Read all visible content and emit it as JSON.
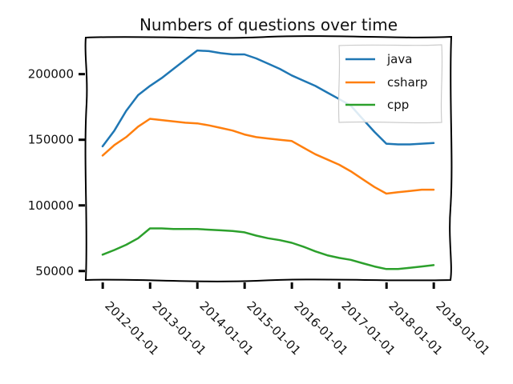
{
  "chart_data": {
    "type": "line",
    "title": "Numbers of questions over time",
    "xlabel": "",
    "ylabel": "",
    "x": [
      "2011-12-31",
      "2012-03-31",
      "2012-06-30",
      "2012-09-30",
      "2012-12-31",
      "2013-03-31",
      "2013-06-30",
      "2013-09-30",
      "2013-12-31",
      "2014-03-31",
      "2014-06-30",
      "2014-09-30",
      "2014-12-31",
      "2015-03-31",
      "2015-06-30",
      "2015-09-30",
      "2015-12-31",
      "2016-03-31",
      "2016-06-30",
      "2016-09-30",
      "2016-12-31",
      "2017-03-31",
      "2017-06-30",
      "2017-09-30",
      "2017-12-31",
      "2018-03-31",
      "2018-06-30",
      "2018-09-30",
      "2018-12-31"
    ],
    "series": [
      {
        "name": "java",
        "color": "#1f77b4",
        "values": [
          145000,
          157000,
          172000,
          184000,
          191000,
          197000,
          204000,
          211000,
          218000,
          217500,
          216000,
          215000,
          215000,
          212000,
          208000,
          204000,
          199000,
          195000,
          191000,
          186000,
          181000,
          176000,
          166000,
          156000,
          147000,
          146500,
          146500,
          147000,
          147500
        ]
      },
      {
        "name": "csharp",
        "color": "#ff7f0e",
        "values": [
          138000,
          146000,
          152000,
          160000,
          166000,
          165000,
          164000,
          163000,
          162500,
          161000,
          159000,
          157000,
          154000,
          152000,
          151000,
          150000,
          149000,
          144000,
          139000,
          135000,
          131000,
          126000,
          120000,
          114000,
          109000,
          110000,
          111000,
          112000,
          112000
        ]
      },
      {
        "name": "cpp",
        "color": "#2ca02c",
        "values": [
          62500,
          66000,
          70000,
          75000,
          82500,
          82500,
          82000,
          82000,
          82000,
          81500,
          81000,
          80500,
          79500,
          77000,
          75000,
          73500,
          71500,
          68500,
          65000,
          62000,
          60000,
          58500,
          56000,
          53500,
          51500,
          51500,
          52500,
          53500,
          54500
        ]
      }
    ],
    "yticks": [
      "50000",
      "100000",
      "150000",
      "200000"
    ],
    "xticks": [
      "2012-01-01",
      "2013-01-01",
      "2014-01-01",
      "2015-01-01",
      "2016-01-01",
      "2017-01-01",
      "2018-01-01",
      "2019-01-01"
    ],
    "ylim": [
      45000,
      226000
    ],
    "legend_position": "top-right",
    "grid": false
  }
}
